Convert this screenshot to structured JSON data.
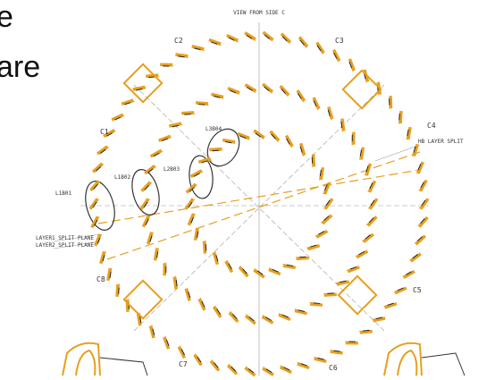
{
  "slide_text": {
    "line1": "e",
    "line2": "are"
  },
  "diagram": {
    "title": "VIEW FROM SIDE C",
    "connectors": [
      "C1",
      "C2",
      "C3",
      "C4",
      "C5",
      "C6",
      "C7",
      "C8"
    ],
    "blocks": [
      "L1B01",
      "L1B02",
      "L2B03",
      "L3B04"
    ],
    "planes": [
      "LAYER1 SPLIT PLANE",
      "LAYER2 SPLIT PLANE",
      "HB LAYER SPLIT"
    ]
  }
}
